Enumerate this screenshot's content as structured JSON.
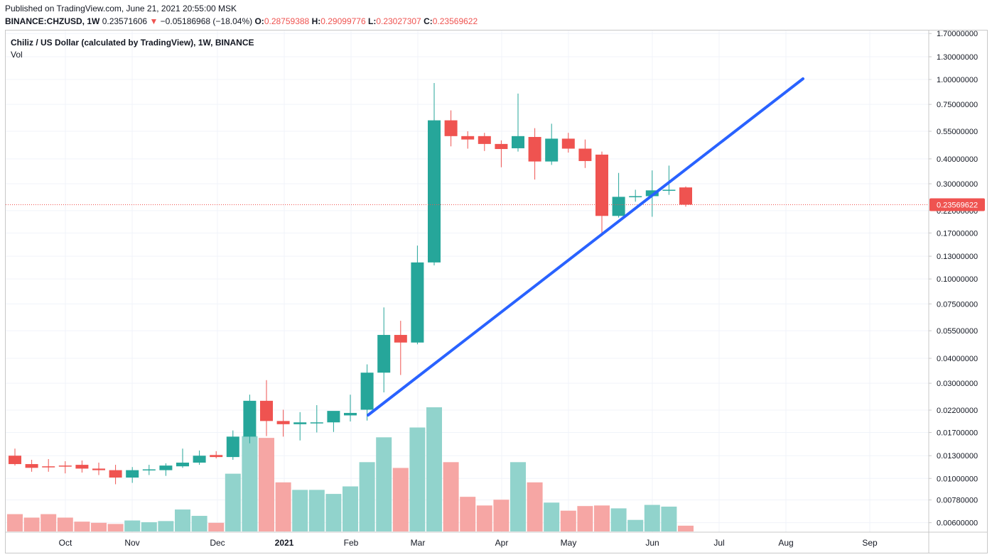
{
  "header": {
    "published": "Published on TradingView.com, June 21, 2021 20:55:00 MSK",
    "symbol": "BINANCE:CHZUSD, 1W",
    "price": "0.23571606",
    "change_arrow": "▼",
    "change": "−0.05186968 (−18.04%)",
    "o_label": "O:",
    "o_value": "0.28759388",
    "h_label": "H:",
    "h_value": "0.29099776",
    "l_label": "L:",
    "l_value": "0.23027307",
    "c_label": "C:",
    "c_value": "0.23569622"
  },
  "legend": {
    "title": "Chiliz / US Dollar (calculated by TradingView), 1W, BINANCE",
    "vol": "Vol"
  },
  "colors": {
    "up": "#26a69a",
    "down": "#ef5350",
    "vol_up": "#91d3cc",
    "vol_down": "#f6a6a4",
    "trendline": "#2962ff",
    "price_label_bg": "#ef5350"
  },
  "chart_data": {
    "type": "candlestick",
    "scale": "log",
    "y_ticks": [
      "1.70000000",
      "1.30000000",
      "1.00000000",
      "0.75000000",
      "0.55000000",
      "0.40000000",
      "0.30000000",
      "0.22000000",
      "0.17000000",
      "0.13000000",
      "0.10000000",
      "0.07500000",
      "0.05500000",
      "0.04000000",
      "0.03000000",
      "0.02200000",
      "0.01700000",
      "0.01300000",
      "0.01000000",
      "0.00780000",
      "0.00600000"
    ],
    "x_labels": [
      "Oct",
      "Nov",
      "Dec",
      "2021",
      "Feb",
      "Mar",
      "Apr",
      "May",
      "Jun",
      "Jul",
      "Aug",
      "Sep"
    ],
    "last_price": "0.23569622",
    "candles": [
      {
        "o": 0.013,
        "h": 0.0141,
        "l": 0.0116,
        "c": 0.0118,
        "v": 0.3
      },
      {
        "o": 0.0118,
        "h": 0.0124,
        "l": 0.0108,
        "c": 0.0113,
        "v": 0.24
      },
      {
        "o": 0.0115,
        "h": 0.0125,
        "l": 0.0108,
        "c": 0.0114,
        "v": 0.3
      },
      {
        "o": 0.0116,
        "h": 0.0122,
        "l": 0.0106,
        "c": 0.0115,
        "v": 0.24
      },
      {
        "o": 0.0117,
        "h": 0.0123,
        "l": 0.0107,
        "c": 0.0112,
        "v": 0.17
      },
      {
        "o": 0.0112,
        "h": 0.012,
        "l": 0.0104,
        "c": 0.011,
        "v": 0.15
      },
      {
        "o": 0.011,
        "h": 0.0117,
        "l": 0.00935,
        "c": 0.0101,
        "v": 0.13
      },
      {
        "o": 0.0101,
        "h": 0.0114,
        "l": 0.0095,
        "c": 0.011,
        "v": 0.19
      },
      {
        "o": 0.011,
        "h": 0.0117,
        "l": 0.0104,
        "c": 0.0111,
        "v": 0.16
      },
      {
        "o": 0.011,
        "h": 0.0119,
        "l": 0.0103,
        "c": 0.0116,
        "v": 0.18
      },
      {
        "o": 0.0115,
        "h": 0.0141,
        "l": 0.0113,
        "c": 0.012,
        "v": 0.38
      },
      {
        "o": 0.012,
        "h": 0.0138,
        "l": 0.0117,
        "c": 0.013,
        "v": 0.27
      },
      {
        "o": 0.0131,
        "h": 0.0137,
        "l": 0.0126,
        "c": 0.0128,
        "v": 0.15
      },
      {
        "o": 0.0128,
        "h": 0.0174,
        "l": 0.0124,
        "c": 0.0162,
        "v": 1.0
      },
      {
        "o": 0.0162,
        "h": 0.0263,
        "l": 0.015,
        "c": 0.0245,
        "v": 1.65
      },
      {
        "o": 0.0245,
        "h": 0.0311,
        "l": 0.0163,
        "c": 0.0194,
        "v": 1.62
      },
      {
        "o": 0.0194,
        "h": 0.0221,
        "l": 0.0162,
        "c": 0.0187,
        "v": 0.85
      },
      {
        "o": 0.0187,
        "h": 0.0215,
        "l": 0.0155,
        "c": 0.0191,
        "v": 0.72
      },
      {
        "o": 0.0191,
        "h": 0.0233,
        "l": 0.017,
        "c": 0.0191,
        "v": 0.72
      },
      {
        "o": 0.0191,
        "h": 0.0215,
        "l": 0.0171,
        "c": 0.0218,
        "v": 0.65
      },
      {
        "o": 0.0207,
        "h": 0.0263,
        "l": 0.0193,
        "c": 0.0213,
        "v": 0.78
      },
      {
        "o": 0.0221,
        "h": 0.0373,
        "l": 0.0195,
        "c": 0.0339,
        "v": 1.2
      },
      {
        "o": 0.0339,
        "h": 0.072,
        "l": 0.027,
        "c": 0.0524,
        "v": 1.63
      },
      {
        "o": 0.0524,
        "h": 0.0617,
        "l": 0.033,
        "c": 0.048,
        "v": 1.1
      },
      {
        "o": 0.048,
        "h": 0.147,
        "l": 0.047,
        "c": 0.121,
        "v": 1.8
      },
      {
        "o": 0.121,
        "h": 0.96,
        "l": 0.117,
        "c": 0.624,
        "v": 2.15
      },
      {
        "o": 0.624,
        "h": 0.7,
        "l": 0.462,
        "c": 0.52,
        "v": 1.2
      },
      {
        "o": 0.52,
        "h": 0.55,
        "l": 0.45,
        "c": 0.5,
        "v": 0.6
      },
      {
        "o": 0.52,
        "h": 0.54,
        "l": 0.438,
        "c": 0.475,
        "v": 0.45
      },
      {
        "o": 0.475,
        "h": 0.495,
        "l": 0.363,
        "c": 0.448,
        "v": 0.55
      },
      {
        "o": 0.452,
        "h": 0.85,
        "l": 0.435,
        "c": 0.52,
        "v": 1.2
      },
      {
        "o": 0.515,
        "h": 0.57,
        "l": 0.315,
        "c": 0.388,
        "v": 0.85
      },
      {
        "o": 0.388,
        "h": 0.6,
        "l": 0.373,
        "c": 0.505,
        "v": 0.5
      },
      {
        "o": 0.505,
        "h": 0.54,
        "l": 0.43,
        "c": 0.45,
        "v": 0.36
      },
      {
        "o": 0.45,
        "h": 0.5,
        "l": 0.36,
        "c": 0.39,
        "v": 0.44
      },
      {
        "o": 0.42,
        "h": 0.435,
        "l": 0.164,
        "c": 0.207,
        "v": 0.45
      },
      {
        "o": 0.207,
        "h": 0.34,
        "l": 0.203,
        "c": 0.258,
        "v": 0.4
      },
      {
        "o": 0.258,
        "h": 0.28,
        "l": 0.244,
        "c": 0.26,
        "v": 0.2
      },
      {
        "o": 0.26,
        "h": 0.35,
        "l": 0.205,
        "c": 0.278,
        "v": 0.46
      },
      {
        "o": 0.278,
        "h": 0.37,
        "l": 0.264,
        "c": 0.28,
        "v": 0.43
      },
      {
        "o": 0.2876,
        "h": 0.291,
        "l": 0.2303,
        "c": 0.2357,
        "v": 0.1
      }
    ]
  }
}
